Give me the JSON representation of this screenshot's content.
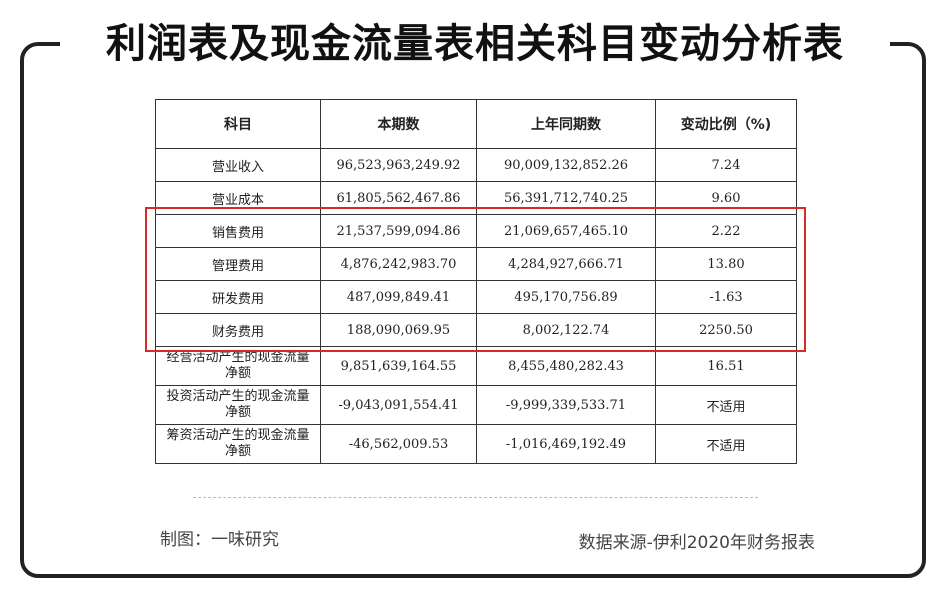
{
  "title": "利润表及现金流量表相关科目变动分析表",
  "table": {
    "headers": [
      "科目",
      "本期数",
      "上年同期数",
      "变动比例（%)"
    ],
    "rows": [
      {
        "item": "营业收入",
        "current": "96,523,963,249.92",
        "prior": "90,009,132,852.26",
        "change": "7.24"
      },
      {
        "item": "营业成本",
        "current": "61,805,562,467.86",
        "prior": "56,391,712,740.25",
        "change": "9.60"
      },
      {
        "item": "销售费用",
        "current": "21,537,599,094.86",
        "prior": "21,069,657,465.10",
        "change": "2.22"
      },
      {
        "item": "管理费用",
        "current": "4,876,242,983.70",
        "prior": "4,284,927,666.71",
        "change": "13.80"
      },
      {
        "item": "研发费用",
        "current": "487,099,849.41",
        "prior": "495,170,756.89",
        "change": "-1.63"
      },
      {
        "item": "财务费用",
        "current": "188,090,069.95",
        "prior": "8,002,122.74",
        "change": "2250.50"
      },
      {
        "item_line1": "经营活动产生的现金流量",
        "item_line2": "净额",
        "current": "9,851,639,164.55",
        "prior": "8,455,480,282.43",
        "change": "16.51"
      },
      {
        "item_line1": "投资活动产生的现金流量",
        "item_line2": "净额",
        "current": "-9,043,091,554.41",
        "prior": "-9,999,339,533.71",
        "change": "不适用"
      },
      {
        "item_line1": "筹资活动产生的现金流量",
        "item_line2": "净额",
        "current": "-46,562,009.53",
        "prior": "-1,016,469,192.49",
        "change": "不适用"
      }
    ]
  },
  "highlight_color": "#d42a2a",
  "footer": {
    "left": "制图：一味研究",
    "right": "数据来源-伊利2020年财务报表"
  }
}
